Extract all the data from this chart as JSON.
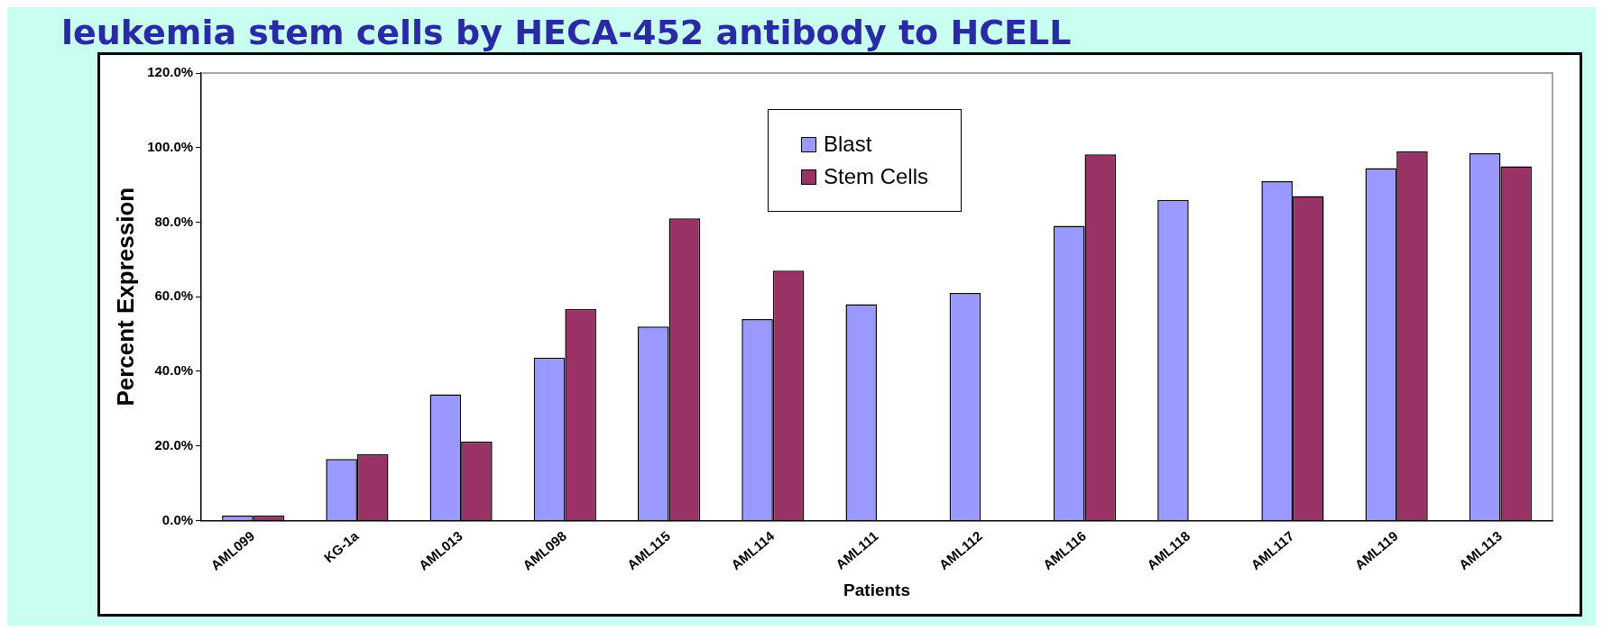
{
  "chart_data": {
    "type": "bar",
    "title": "leukemia stem cells by HECA-452 antibody to HCELL",
    "xlabel": "Patients",
    "ylabel": "Percent Expression",
    "categories": [
      "AML099",
      "KG-1a",
      "AML013",
      "AML098",
      "AML115",
      "AML114",
      "AML111",
      "AML112",
      "AML116",
      "AML118",
      "AML117",
      "AML119",
      "AML113"
    ],
    "series": [
      {
        "name": "Blast",
        "color": "#9999ff",
        "values": [
          1.3,
          16.5,
          33.8,
          43.7,
          52,
          54,
          58,
          61,
          79,
          86,
          91,
          94.5,
          98.5
        ]
      },
      {
        "name": "Stem Cells",
        "color": "#993366",
        "values": [
          1.3,
          17.8,
          21.2,
          56.7,
          81,
          67,
          null,
          null,
          98.2,
          null,
          87,
          99,
          95
        ]
      }
    ],
    "ylim": [
      0,
      120
    ],
    "yticks": [
      {
        "value": 0,
        "label": "0.0%"
      },
      {
        "value": 20,
        "label": "20.0%"
      },
      {
        "value": 40,
        "label": "40.0%"
      },
      {
        "value": 60,
        "label": "60.0%"
      },
      {
        "value": 80,
        "label": "80.0%"
      },
      {
        "value": 100,
        "label": "100.0%"
      },
      {
        "value": 120,
        "label": "120.0%"
      }
    ],
    "grid": false,
    "legend": "top"
  }
}
